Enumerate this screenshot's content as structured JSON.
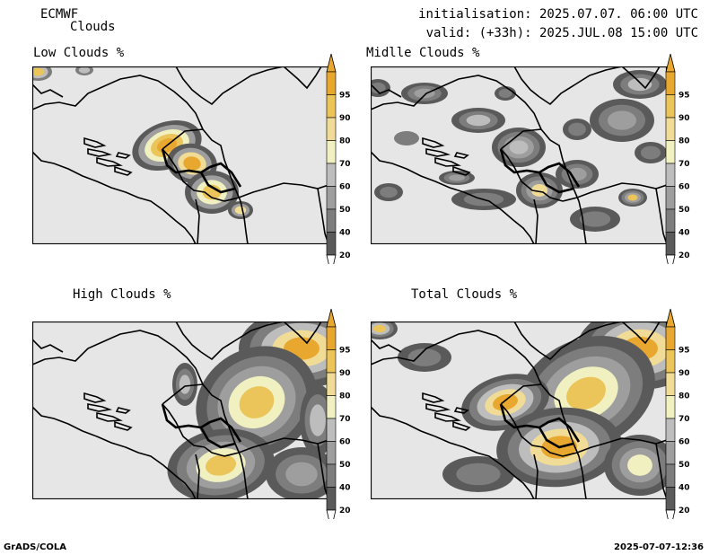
{
  "header": {
    "model": "ECMWF",
    "parameter": "Clouds",
    "init": "initialisation: 2025.07.07. 06:00 UTC",
    "valid": "valid: (+33h): 2025.JUL.08 15:00 UTC"
  },
  "panels": [
    {
      "id": "low",
      "title": "Low Clouds %"
    },
    {
      "id": "mid",
      "title": "Midlle Clouds %"
    },
    {
      "id": "high",
      "title": "High Clouds %"
    },
    {
      "id": "total",
      "title": "Total Clouds %"
    }
  ],
  "colorbar": {
    "levels": [
      "20",
      "40",
      "50",
      "60",
      "70",
      "80",
      "90",
      "95"
    ],
    "colors": [
      "#5a5a5a",
      "#7d7d7d",
      "#9e9e9e",
      "#bdbdbd",
      "#f0f0c0",
      "#f0dc96",
      "#ebc45a",
      "#e8a830"
    ],
    "under_color": "#ffffff",
    "over_color": "#e8a830"
  },
  "colors": {
    "land_background": "#e6e6e6",
    "border": "#000000"
  },
  "footer": {
    "left": "GrADS/COLA",
    "right": "2025-07-07-12:36"
  }
}
